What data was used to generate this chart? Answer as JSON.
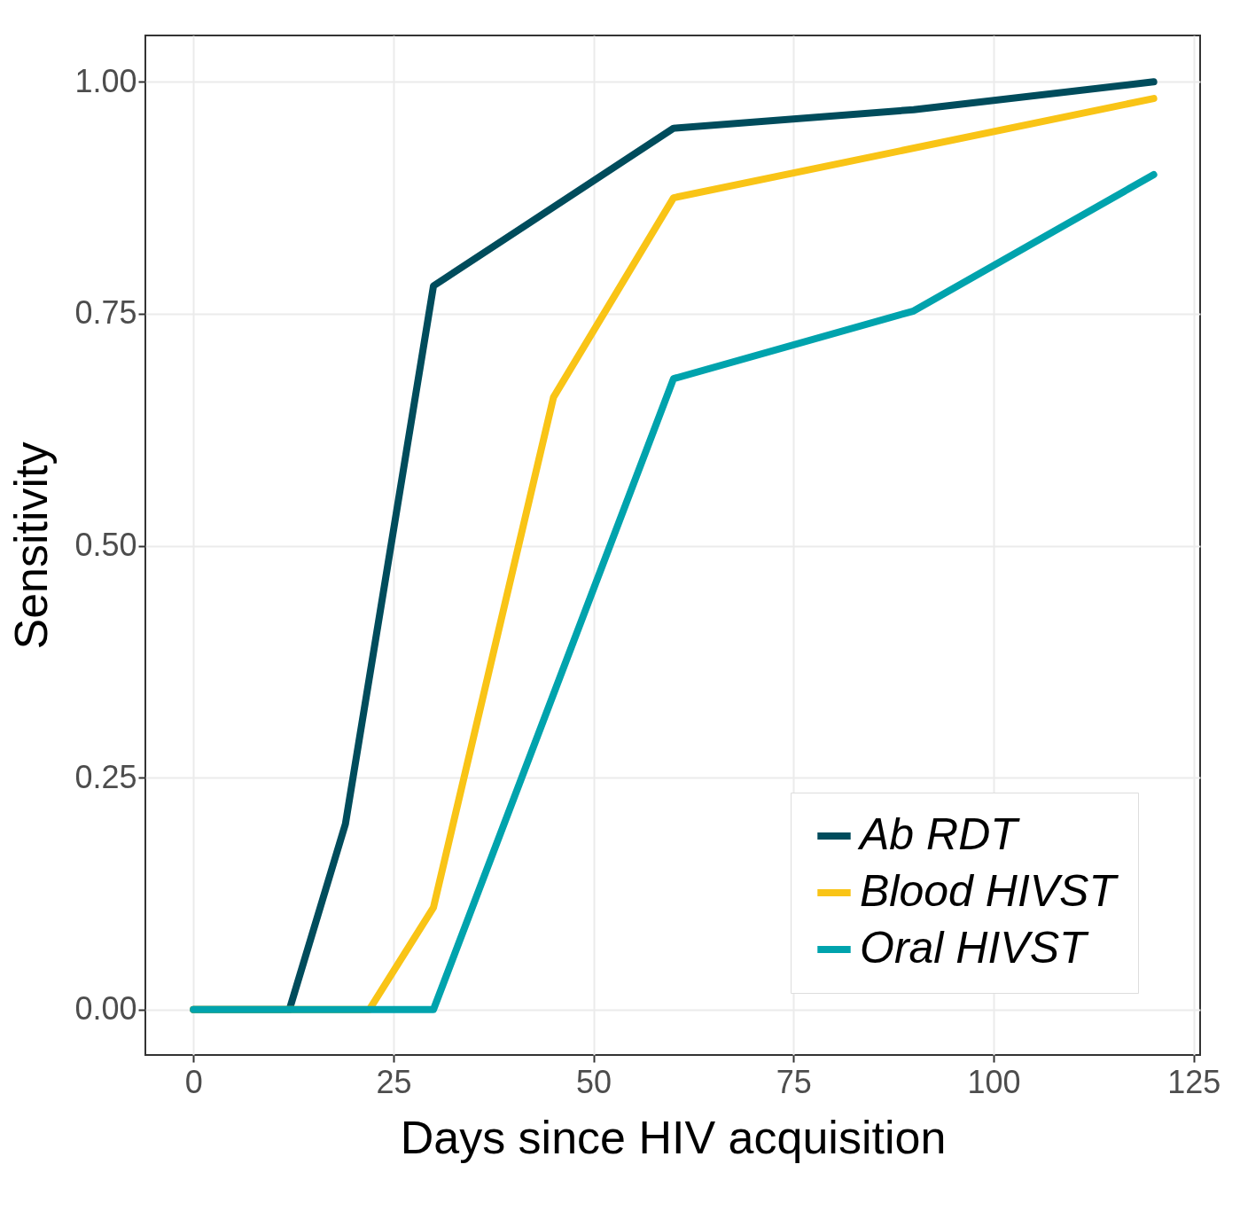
{
  "chart_data": {
    "type": "line",
    "xlabel": "Days since HIV acquisition",
    "ylabel": "Sensitivity",
    "xlim": [
      -6,
      125.8
    ],
    "xticks": [
      0,
      25,
      50,
      75,
      100,
      125
    ],
    "ylim": [
      -0.049,
      1.05
    ],
    "yticks": [
      {
        "value": 0,
        "label": "0.00"
      },
      {
        "value": 0.25,
        "label": "0.25"
      },
      {
        "value": 0.5,
        "label": "0.50"
      },
      {
        "value": 0.75,
        "label": "0.75"
      },
      {
        "value": 1,
        "label": "1.00"
      }
    ],
    "grid": true,
    "legend": "bottom right",
    "line_style": "solid",
    "marker": "none",
    "series": [
      {
        "name": "Ab RDT",
        "color": "#004c5c",
        "x": [
          0,
          12,
          19,
          30,
          60,
          90,
          120
        ],
        "values": [
          0,
          0,
          0.2,
          0.78,
          0.95,
          0.97,
          1.0
        ]
      },
      {
        "name": "Blood HIVST",
        "color": "#f9c416",
        "x": [
          0,
          22,
          30,
          45,
          60,
          120
        ],
        "values": [
          0,
          0,
          0.11,
          0.66,
          0.875,
          0.982
        ]
      },
      {
        "name": "Oral HIVST",
        "color": "#00a3ad",
        "x": [
          0,
          30,
          60,
          90,
          120
        ],
        "values": [
          0,
          0,
          0.68,
          0.753,
          0.9
        ]
      }
    ]
  }
}
